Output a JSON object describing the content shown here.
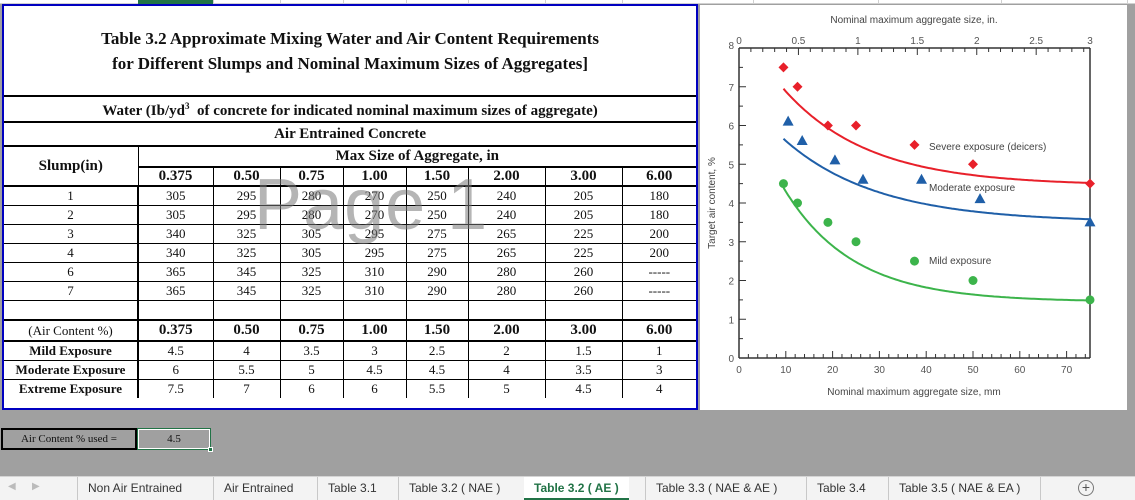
{
  "table": {
    "title_line1": "Table 3.2 Approximate Mixing Water and Air Content Requirements",
    "title_line2": "for Different Slumps and Nominal Maximum Sizes of Aggregates]",
    "water_header_pre": "Water (Ib/yd",
    "water_header_sup": "3",
    "water_header_post": "  of concrete for indicated nominal maximum sizes of aggregate)",
    "concrete_type": "Air Entrained Concrete",
    "slump_label": "Slump(in)",
    "max_size_label": "Max Size of Aggregate, in",
    "sizes": [
      "0.375",
      "0.50",
      "0.75",
      "1.00",
      "1.50",
      "2.00",
      "3.00",
      "6.00"
    ],
    "water_rows": [
      {
        "slump": "1",
        "values": [
          "305",
          "295",
          "280",
          "270",
          "250",
          "240",
          "205",
          "180"
        ]
      },
      {
        "slump": "2",
        "values": [
          "305",
          "295",
          "280",
          "270",
          "250",
          "240",
          "205",
          "180"
        ]
      },
      {
        "slump": "3",
        "values": [
          "340",
          "325",
          "305",
          "295",
          "275",
          "265",
          "225",
          "200"
        ]
      },
      {
        "slump": "4",
        "values": [
          "340",
          "325",
          "305",
          "295",
          "275",
          "265",
          "225",
          "200"
        ]
      },
      {
        "slump": "6",
        "values": [
          "365",
          "345",
          "325",
          "310",
          "290",
          "280",
          "260",
          "-----"
        ]
      },
      {
        "slump": "7",
        "values": [
          "365",
          "345",
          "325",
          "310",
          "290",
          "280",
          "260",
          "-----"
        ]
      }
    ],
    "air_content_label": "(Air Content %)",
    "air_rows": [
      {
        "label": "Mild Exposure",
        "values": [
          "4.5",
          "4",
          "3.5",
          "3",
          "2.5",
          "2",
          "1.5",
          "1"
        ]
      },
      {
        "label": "Moderate Exposure",
        "values": [
          "6",
          "5.5",
          "5",
          "4.5",
          "4.5",
          "4",
          "3.5",
          "3"
        ]
      },
      {
        "label": "Extreme Exposure",
        "values": [
          "7.5",
          "7",
          "6",
          "6",
          "5.5",
          "5",
          "4.5",
          "4"
        ]
      }
    ]
  },
  "watermark": "Page 1",
  "air_content_used": {
    "label": "Air Content % used =",
    "value": "4.5"
  },
  "chart_data": {
    "type": "scatter",
    "title": "",
    "top_xlabel": "Nominal maximum aggregate size, in.",
    "top_xticks": [
      "0",
      "0.5",
      "1",
      "1.5",
      "2",
      "2.5",
      "3"
    ],
    "xlabel": "Nominal maximum aggregate size, mm",
    "xticks": [
      "0",
      "10",
      "20",
      "30",
      "40",
      "50",
      "60",
      "70"
    ],
    "ylabel": "Target air content, %",
    "yticks": [
      "0",
      "1",
      "2",
      "3",
      "4",
      "5",
      "6",
      "7",
      "8"
    ],
    "xlim": [
      0,
      75
    ],
    "ylim": [
      0,
      8
    ],
    "grid": false,
    "series": [
      {
        "name": "Severe exposure (deicers)",
        "color": "#e8202a",
        "marker": "diamond",
        "x": [
          9.5,
          12.5,
          19,
          25,
          37.5,
          50,
          75
        ],
        "y": [
          7.5,
          7.0,
          6.0,
          6.0,
          5.5,
          5.0,
          4.5
        ]
      },
      {
        "name": "Moderate exposure",
        "color": "#1f5fa8",
        "marker": "triangle",
        "x": [
          10.5,
          13.5,
          20.5,
          26.5,
          39,
          51.5,
          75
        ],
        "y": [
          6.1,
          5.6,
          5.1,
          4.6,
          4.6,
          4.1,
          3.5
        ]
      },
      {
        "name": "Mild exposure",
        "color": "#3cb44b",
        "marker": "circle",
        "x": [
          9.5,
          12.5,
          19,
          25,
          37.5,
          50,
          75
        ],
        "y": [
          4.5,
          4.0,
          3.5,
          3.0,
          2.5,
          2.0,
          1.5
        ]
      }
    ]
  },
  "tabs": [
    {
      "label": "Non Air Entrained",
      "active": false
    },
    {
      "label": "Air Entrained",
      "active": false
    },
    {
      "label": "Table 3.1",
      "active": false
    },
    {
      "label": "Table 3.2 ( NAE )",
      "active": false
    },
    {
      "label": "Table 3.2 ( AE )",
      "active": true
    },
    {
      "label": "Table 3.3 ( NAE & AE )",
      "active": false
    },
    {
      "label": "Table 3.4",
      "active": false
    },
    {
      "label": "Table 3.5 ( NAE & EA )",
      "active": false
    }
  ],
  "tab_nav": {
    "prev": "◀",
    "next": "▶",
    "add": "+"
  }
}
